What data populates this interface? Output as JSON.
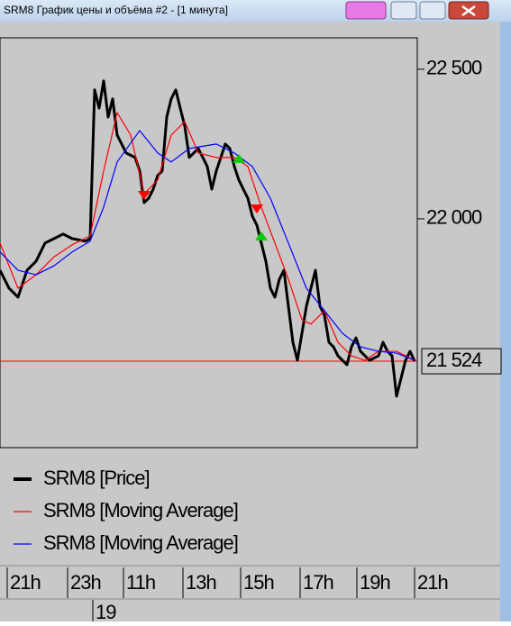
{
  "window_title": "SRM8 График цены и объёма #2 - [1 минута]",
  "chart_data": {
    "type": "line",
    "xlim": [
      0,
      92.6
    ],
    "ylim": [
      21235,
      22605
    ],
    "yticks": [
      {
        "value": 22000,
        "label": "22 000"
      },
      {
        "value": 22500,
        "label": "22 500"
      }
    ],
    "xticks": [
      {
        "value": 1.6,
        "label": "21h"
      },
      {
        "value": 15,
        "label": "23h"
      },
      {
        "value": 27.4,
        "label": "11h"
      },
      {
        "value": 40.6,
        "label": "13h"
      },
      {
        "value": 53.4,
        "label": "15h"
      },
      {
        "value": 66.6,
        "label": "17h"
      },
      {
        "value": 79.2,
        "label": "19h"
      },
      {
        "value": 92,
        "label": "21h"
      }
    ],
    "date_ticks": [
      {
        "value": 20.6,
        "label": "19"
      }
    ],
    "last_value": {
      "value": 21524,
      "label": "21 524"
    },
    "last_value_color": "#ff0000",
    "series": [
      {
        "name": "SRM8 [Price]",
        "color": "#000000",
        "x": [
          0,
          2,
          4,
          6,
          8,
          10,
          12,
          14,
          16,
          19,
          20,
          21,
          22,
          23,
          24,
          25,
          26,
          28,
          30,
          31,
          32,
          33,
          34,
          35,
          36,
          37,
          38,
          39,
          40,
          41,
          42,
          44,
          46,
          47,
          48,
          50,
          51,
          52,
          53,
          54,
          55,
          56,
          57,
          58,
          59,
          60,
          61,
          62,
          63,
          64,
          65,
          66,
          67,
          68,
          69,
          70,
          71,
          72,
          73,
          74,
          75,
          76,
          77,
          78,
          79,
          80,
          82,
          84,
          85,
          86,
          87,
          88,
          89,
          90,
          91,
          92
        ],
        "values": [
          21828,
          21768,
          21738,
          21828,
          21858,
          21919,
          21934,
          21949,
          21934,
          21925,
          21934,
          22431,
          22370,
          22461,
          22340,
          22401,
          22280,
          22220,
          22205,
          22160,
          22054,
          22069,
          22099,
          22145,
          22160,
          22340,
          22401,
          22431,
          22370,
          22310,
          22205,
          22235,
          22175,
          22099,
          22160,
          22250,
          22235,
          22175,
          22130,
          22099,
          22069,
          22009,
          21979,
          21919,
          21858,
          21768,
          21738,
          21798,
          21828,
          21708,
          21587,
          21527,
          21617,
          21708,
          21768,
          21828,
          21708,
          21678,
          21587,
          21572,
          21542,
          21527,
          21512,
          21572,
          21602,
          21557,
          21527,
          21542,
          21587,
          21557,
          21542,
          21407,
          21467,
          21527,
          21557,
          21524
        ]
      },
      {
        "name": "SRM8 [Moving Average]",
        "color": "#ff0000",
        "x": [
          0,
          4,
          8,
          12,
          16,
          20,
          23,
          26,
          29,
          32,
          35,
          38,
          41,
          44,
          48,
          52,
          55,
          58,
          61,
          64,
          67,
          69,
          72,
          75,
          78,
          81,
          84,
          88,
          92
        ],
        "values": [
          21919,
          21768,
          21813,
          21873,
          21913,
          21943,
          22160,
          22355,
          22280,
          22084,
          22130,
          22280,
          22325,
          22220,
          22205,
          22205,
          22175,
          22039,
          21919,
          21798,
          21663,
          21648,
          21693,
          21587,
          21542,
          21527,
          21557,
          21557,
          21527
        ]
      },
      {
        "name": "SRM8 [Moving Average]",
        "color": "#0000ff",
        "x": [
          0,
          4,
          8,
          12,
          16,
          20,
          23,
          26,
          31,
          35,
          38,
          42,
          48,
          52,
          56,
          60,
          64,
          68,
          72,
          76,
          80,
          84,
          88,
          92
        ],
        "values": [
          21889,
          21828,
          21813,
          21843,
          21889,
          21925,
          22039,
          22190,
          22295,
          22220,
          22190,
          22235,
          22250,
          22220,
          22175,
          22069,
          21919,
          21768,
          21693,
          21617,
          21572,
          21557,
          21551,
          21527
        ]
      }
    ],
    "markers": [
      {
        "shape": "down",
        "color": "#ff0000",
        "x": [
          32,
          57
        ],
        "values": [
          22078,
          22033
        ]
      },
      {
        "shape": "up",
        "color": "#00cc00",
        "x": [
          53,
          58
        ],
        "values": [
          22202,
          21943
        ]
      }
    ]
  }
}
